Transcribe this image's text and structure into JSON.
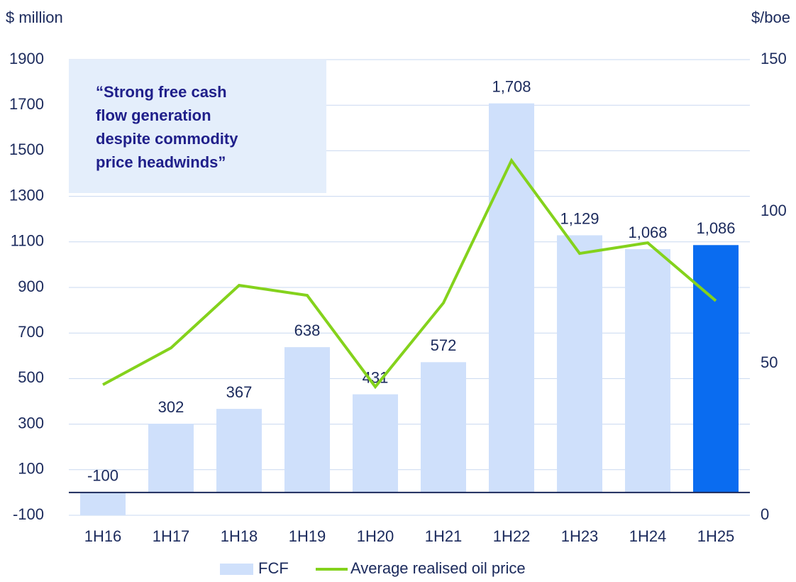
{
  "chart_data": {
    "type": "bar",
    "y_label": "$ million",
    "y2_label": "$/boe",
    "annotation": [
      "“Strong free cash",
      "flow generation",
      "despite commodity",
      "price headwinds”"
    ],
    "categories": [
      "1H16",
      "1H17",
      "1H18",
      "1H19",
      "1H20",
      "1H21",
      "1H22",
      "1H23",
      "1H24",
      "1H25"
    ],
    "series": [
      {
        "name": "FCF",
        "type": "bar",
        "color": "#cfe0fb",
        "colors": [
          "#cfe0fb",
          "#cfe0fb",
          "#cfe0fb",
          "#cfe0fb",
          "#cfe0fb",
          "#cfe0fb",
          "#cfe0fb",
          "#cfe0fb",
          "#cfe0fb",
          "#0a6cf0"
        ],
        "values": [
          -100,
          302,
          367,
          638,
          431,
          572,
          1708,
          1129,
          1068,
          1086
        ],
        "value_labels": [
          "-100",
          "302",
          "367",
          "638",
          "431",
          "572",
          "1,708",
          "1,129",
          "1,068",
          "1,086"
        ]
      },
      {
        "name": "Average realised oil price",
        "type": "line",
        "axis": "y2",
        "color": "#84d21c",
        "values": [
          43,
          55.1,
          75.7,
          72.4,
          42.3,
          69.9,
          116.8,
          86.2,
          89.7,
          70.6
        ]
      }
    ],
    "ylim": [
      -100,
      1900
    ],
    "yticks": [
      -100,
      100,
      300,
      500,
      700,
      900,
      1100,
      1300,
      1500,
      1700,
      1900
    ],
    "y2lim": [
      0,
      150
    ],
    "y2ticks": [
      0,
      50,
      100,
      150
    ],
    "grid": true,
    "legend": "bottom"
  }
}
